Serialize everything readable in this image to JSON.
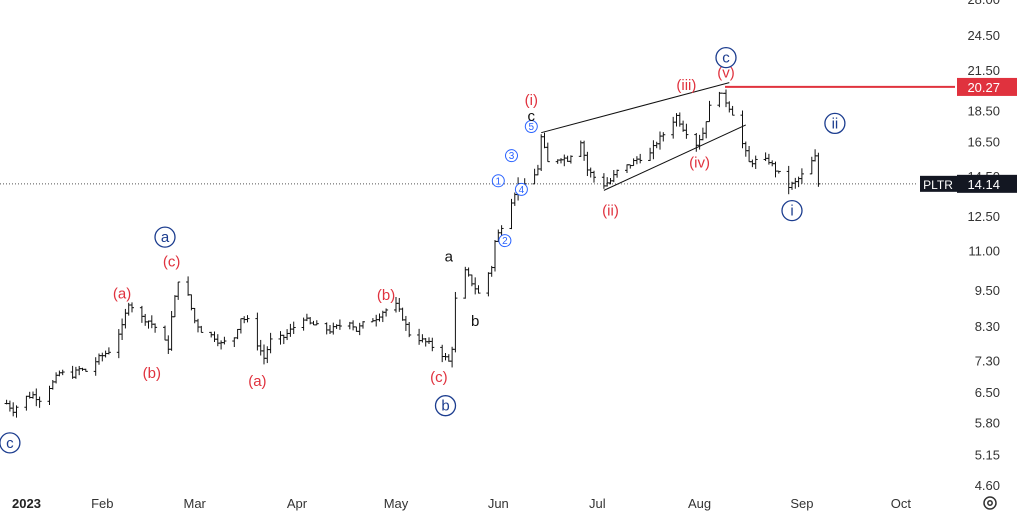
{
  "chart_data": {
    "type": "ohlc",
    "symbol": "PLTR",
    "last_price": "14.14",
    "level_price": "20.27",
    "y_scale": "log",
    "ylim": [
      4.6,
      28.0
    ],
    "y_ticks": [
      "28.00",
      "24.50",
      "21.50",
      "18.50",
      "16.50",
      "14.50",
      "12.50",
      "11.00",
      "9.50",
      "8.30",
      "7.30",
      "6.50",
      "5.80",
      "5.15",
      "4.60"
    ],
    "x_ticks": [
      "2023",
      "Feb",
      "Mar",
      "Apr",
      "May",
      "Jun",
      "Jul",
      "Aug",
      "Sep",
      "Oct"
    ],
    "colors": {
      "bars": "#111111",
      "level": "#e0323e",
      "label_red": "#e0323e",
      "label_blue": "#1c3d8f",
      "label_small": "#2962ff",
      "tag_dark": "#131722"
    },
    "price_path": [
      [
        "2023-01-03",
        6.25
      ],
      [
        "2023-01-05",
        6.1
      ],
      [
        "2023-01-09",
        6.4
      ],
      [
        "2023-01-11",
        6.45
      ],
      [
        "2023-01-13",
        6.35
      ],
      [
        "2023-01-17",
        6.75
      ],
      [
        "2023-01-19",
        7.0
      ],
      [
        "2023-01-23",
        6.95
      ],
      [
        "2023-01-25",
        7.1
      ],
      [
        "2023-01-27",
        7.05
      ],
      [
        "2023-01-31",
        7.4
      ],
      [
        "2023-02-03",
        7.6
      ],
      [
        "2023-02-07",
        8.3
      ],
      [
        "2023-02-09",
        9.1
      ],
      [
        "2023-02-13",
        8.6
      ],
      [
        "2023-02-15",
        8.5
      ],
      [
        "2023-02-17",
        8.3
      ],
      [
        "2023-02-21",
        7.7
      ],
      [
        "2023-02-22",
        8.6
      ],
      [
        "2023-02-24",
        9.9
      ],
      [
        "2023-02-27",
        9.3
      ],
      [
        "2023-03-01",
        8.5
      ],
      [
        "2023-03-03",
        8.2
      ],
      [
        "2023-03-07",
        8.0
      ],
      [
        "2023-03-09",
        7.8
      ],
      [
        "2023-03-13",
        8.0
      ],
      [
        "2023-03-15",
        8.6
      ],
      [
        "2023-03-17",
        8.5
      ],
      [
        "2023-03-20",
        7.8
      ],
      [
        "2023-03-22",
        7.4
      ],
      [
        "2023-03-24",
        7.9
      ],
      [
        "2023-03-28",
        8.0
      ],
      [
        "2023-03-30",
        8.2
      ],
      [
        "2023-04-03",
        8.6
      ],
      [
        "2023-04-05",
        8.4
      ],
      [
        "2023-04-11",
        8.2
      ],
      [
        "2023-04-13",
        8.3
      ],
      [
        "2023-04-17",
        8.5
      ],
      [
        "2023-04-19",
        8.2
      ],
      [
        "2023-04-21",
        8.4
      ],
      [
        "2023-04-25",
        8.6
      ],
      [
        "2023-04-27",
        8.8
      ],
      [
        "2023-05-01",
        9.0
      ],
      [
        "2023-05-03",
        8.6
      ],
      [
        "2023-05-05",
        8.1
      ],
      [
        "2023-05-09",
        7.9
      ],
      [
        "2023-05-11",
        7.8
      ],
      [
        "2023-05-15",
        7.5
      ],
      [
        "2023-05-17",
        7.3
      ],
      [
        "2023-05-18",
        7.7
      ],
      [
        "2023-05-19",
        9.2
      ],
      [
        "2023-05-22",
        10.2
      ],
      [
        "2023-05-24",
        9.8
      ],
      [
        "2023-05-26",
        9.4
      ],
      [
        "2023-05-30",
        10.4
      ],
      [
        "2023-05-31",
        11.4
      ],
      [
        "2023-06-02",
        12.1
      ],
      [
        "2023-06-05",
        13.3
      ],
      [
        "2023-06-07",
        14.1
      ],
      [
        "2023-06-09",
        14.0
      ],
      [
        "2023-06-12",
        14.6
      ],
      [
        "2023-06-13",
        15.0
      ],
      [
        "2023-06-14",
        16.8
      ],
      [
        "2023-06-16",
        15.3
      ],
      [
        "2023-06-20",
        15.6
      ],
      [
        "2023-06-22",
        15.5
      ],
      [
        "2023-06-26",
        16.6
      ],
      [
        "2023-06-28",
        14.9
      ],
      [
        "2023-06-30",
        14.5
      ],
      [
        "2023-07-03",
        14.1
      ],
      [
        "2023-07-05",
        14.3
      ],
      [
        "2023-07-07",
        14.8
      ],
      [
        "2023-07-11",
        15.2
      ],
      [
        "2023-07-13",
        15.5
      ],
      [
        "2023-07-17",
        15.8
      ],
      [
        "2023-07-19",
        16.5
      ],
      [
        "2023-07-21",
        17.0
      ],
      [
        "2023-07-25",
        18.2
      ],
      [
        "2023-07-27",
        17.4
      ],
      [
        "2023-07-31",
        16.4
      ],
      [
        "2023-08-02",
        17.1
      ],
      [
        "2023-08-04",
        18.8
      ],
      [
        "2023-08-07",
        20.0
      ],
      [
        "2023-08-09",
        19.2
      ],
      [
        "2023-08-11",
        18.4
      ],
      [
        "2023-08-14",
        16.4
      ],
      [
        "2023-08-16",
        15.3
      ],
      [
        "2023-08-18",
        15.4
      ],
      [
        "2023-08-22",
        15.4
      ],
      [
        "2023-08-24",
        14.9
      ],
      [
        "2023-08-28",
        14.0
      ],
      [
        "2023-08-30",
        14.2
      ],
      [
        "2023-09-01",
        14.6
      ],
      [
        "2023-09-05",
        15.6
      ],
      [
        "2023-09-06",
        14.14
      ]
    ],
    "trend_lines": [
      {
        "name": "upper-channel",
        "from": [
          "2023-06-14",
          17.1
        ],
        "to": [
          "2023-08-10",
          20.6
        ]
      },
      {
        "name": "lower-channel",
        "from": [
          "2023-07-03",
          13.8
        ],
        "to": [
          "2023-08-15",
          17.6
        ]
      }
    ],
    "wave_labels": [
      {
        "text": "c",
        "style": "blue-circle",
        "date": "2023-01-04",
        "price": 5.4
      },
      {
        "text": "a",
        "style": "blue-circle",
        "date": "2023-02-20",
        "price": 11.6
      },
      {
        "text": "(c)",
        "style": "red",
        "date": "2023-02-22",
        "price": 10.6
      },
      {
        "text": "(a)",
        "style": "red",
        "date": "2023-02-07",
        "price": 9.4
      },
      {
        "text": "(b)",
        "style": "red",
        "date": "2023-02-16",
        "price": 7.0
      },
      {
        "text": "(a)",
        "style": "red",
        "date": "2023-03-20",
        "price": 6.8
      },
      {
        "text": "(b)",
        "style": "red",
        "date": "2023-04-28",
        "price": 9.35
      },
      {
        "text": "(c)",
        "style": "red",
        "date": "2023-05-14",
        "price": 6.9
      },
      {
        "text": "b",
        "style": "blue-circle",
        "date": "2023-05-16",
        "price": 6.2
      },
      {
        "text": "a",
        "style": "black",
        "date": "2023-05-17",
        "price": 10.8
      },
      {
        "text": "b",
        "style": "black",
        "date": "2023-05-25",
        "price": 8.5
      },
      {
        "text": "1",
        "style": "small-circle",
        "date": "2023-06-01",
        "price": 14.3
      },
      {
        "text": "2",
        "style": "small-circle",
        "date": "2023-06-03",
        "price": 11.45
      },
      {
        "text": "3",
        "style": "small-circle",
        "date": "2023-06-05",
        "price": 15.7
      },
      {
        "text": "4",
        "style": "small-circle",
        "date": "2023-06-08",
        "price": 13.85
      },
      {
        "text": "5",
        "style": "small-circle",
        "date": "2023-06-11",
        "price": 17.5
      },
      {
        "text": "c",
        "style": "black",
        "date": "2023-06-11",
        "price": 18.2
      },
      {
        "text": "(i)",
        "style": "red",
        "date": "2023-06-11",
        "price": 19.3
      },
      {
        "text": "(ii)",
        "style": "red",
        "date": "2023-07-05",
        "price": 12.8
      },
      {
        "text": "(iii)",
        "style": "red",
        "date": "2023-07-28",
        "price": 20.4
      },
      {
        "text": "(iv)",
        "style": "red",
        "date": "2023-08-01",
        "price": 15.3
      },
      {
        "text": "(v)",
        "style": "red",
        "date": "2023-08-09",
        "price": 21.4
      },
      {
        "text": "c",
        "style": "blue-circle",
        "date": "2023-08-09",
        "price": 22.6
      },
      {
        "text": "i",
        "style": "blue-circle",
        "date": "2023-08-29",
        "price": 12.8
      },
      {
        "text": "ii",
        "style": "blue-circle",
        "date": "2023-09-11",
        "price": 17.7
      }
    ]
  }
}
